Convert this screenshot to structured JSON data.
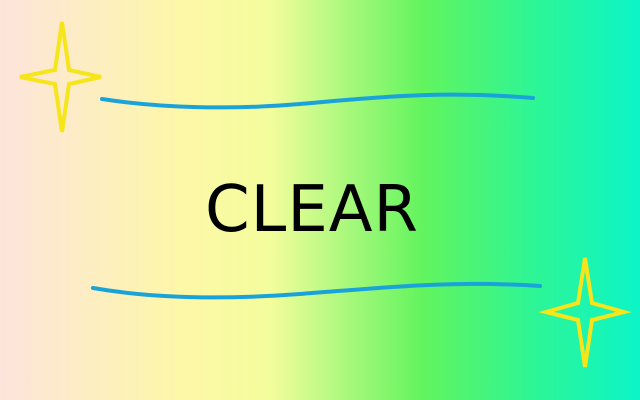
{
  "screen": {
    "message": "CLEAR"
  },
  "colors": {
    "gradient": [
      "#fde4dc",
      "#fdf7a8",
      "#f4fd9c",
      "#62f45e",
      "#2cf598",
      "#0cf5c8"
    ],
    "wave": "#1aa3d9",
    "star_stroke": "#f5e51a",
    "text": "#000000"
  },
  "decorations": {
    "stars": [
      "sparkle-star-icon",
      "sparkle-star-icon"
    ],
    "waves": [
      "wave-line",
      "wave-line"
    ]
  }
}
